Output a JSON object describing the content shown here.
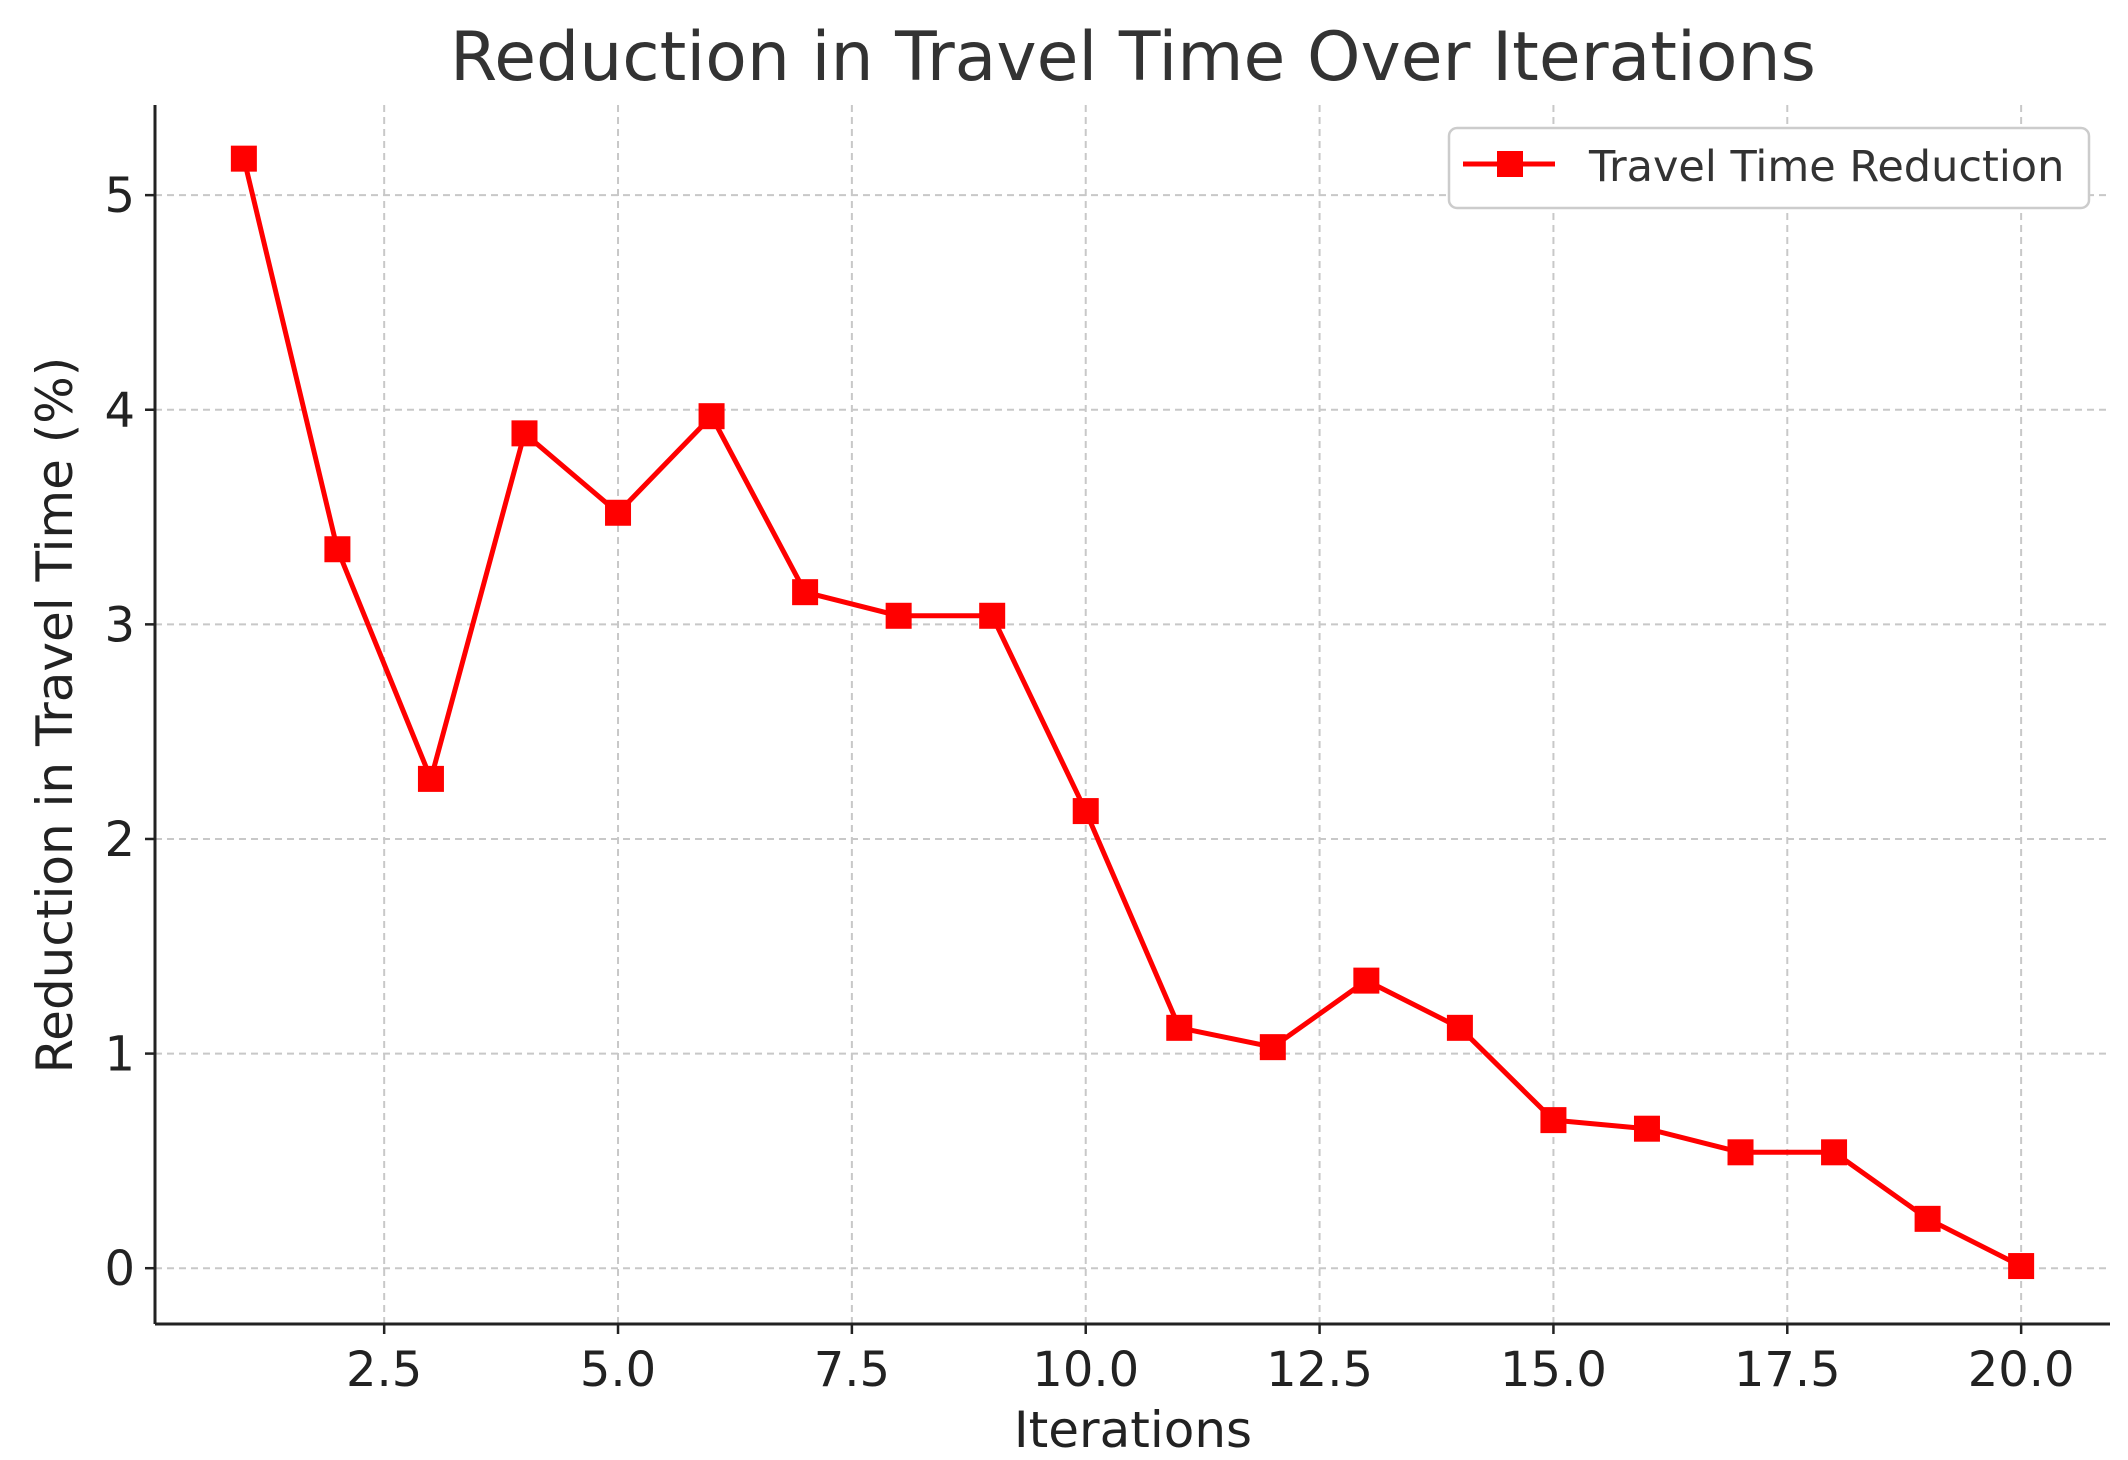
{
  "chart_data": {
    "type": "line",
    "title": "Reduction in Travel Time Over Iterations",
    "xlabel": "Iterations",
    "ylabel": "Reduction in Travel Time (%)",
    "xlim": [
      0.05,
      20.95
    ],
    "ylim": [
      -0.26,
      5.42
    ],
    "xticks": [
      2.5,
      5.0,
      7.5,
      10.0,
      12.5,
      15.0,
      17.5,
      20.0
    ],
    "xtick_labels": [
      "2.5",
      "5.0",
      "7.5",
      "10.0",
      "12.5",
      "15.0",
      "17.5",
      "20.0"
    ],
    "yticks": [
      0,
      1,
      2,
      3,
      4,
      5
    ],
    "ytick_labels": [
      "0",
      "1",
      "2",
      "3",
      "4",
      "5"
    ],
    "grid": true,
    "legend_position": "top-right",
    "series": [
      {
        "name": "Travel Time Reduction",
        "color": "#ff0000",
        "marker": "square",
        "x": [
          1,
          2,
          3,
          4,
          5,
          6,
          7,
          8,
          9,
          10,
          11,
          12,
          13,
          14,
          15,
          16,
          17,
          18,
          19,
          20
        ],
        "y": [
          5.17,
          3.35,
          2.28,
          3.89,
          3.52,
          3.97,
          3.15,
          3.04,
          3.04,
          2.13,
          1.12,
          1.03,
          1.34,
          1.12,
          0.69,
          0.65,
          0.54,
          0.54,
          0.23,
          0.01
        ]
      }
    ]
  }
}
